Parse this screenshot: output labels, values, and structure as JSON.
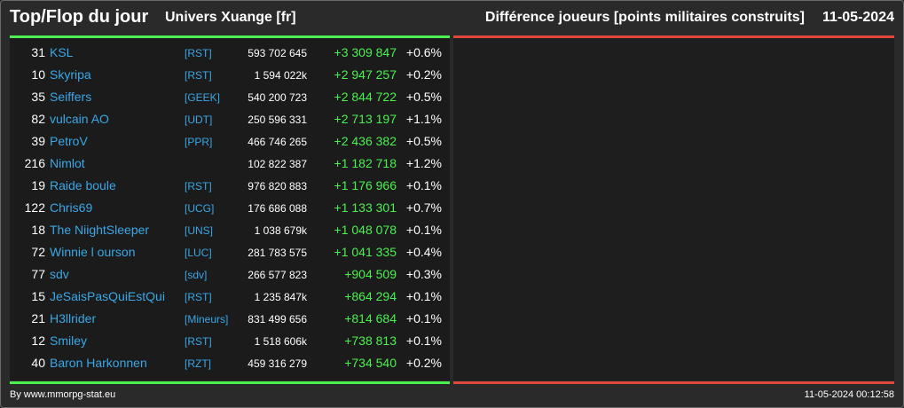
{
  "header": {
    "title": "Top/Flop du jour",
    "universe": "Univers Xuange [fr]",
    "metric": "Différence joueurs [points militaires construits]",
    "date": "11-05-2024"
  },
  "colors": {
    "background": "#2a2a2a",
    "panel": "#1b1b1b",
    "top_line": "#4cf050",
    "flop_line": "#e0463c",
    "name_link": "#3aa7e6",
    "positive_diff": "#4cf050"
  },
  "top_rows": [
    {
      "rank": "31",
      "name": "KSL",
      "alliance": "[RST]",
      "total": "593 702 645",
      "diff": "+3 309 847",
      "pct": "+0.6%"
    },
    {
      "rank": "10",
      "name": "Skyripa",
      "alliance": "[RST]",
      "total": "1 594 022k",
      "diff": "+2 947 257",
      "pct": "+0.2%"
    },
    {
      "rank": "35",
      "name": "Seiffers",
      "alliance": "[GEEK]",
      "total": "540 200 723",
      "diff": "+2 844 722",
      "pct": "+0.5%"
    },
    {
      "rank": "82",
      "name": "vulcain AO",
      "alliance": "[UDT]",
      "total": "250 596 331",
      "diff": "+2 713 197",
      "pct": "+1.1%"
    },
    {
      "rank": "39",
      "name": "PetroV",
      "alliance": "[PPR]",
      "total": "466 746 265",
      "diff": "+2 436 382",
      "pct": "+0.5%"
    },
    {
      "rank": "216",
      "name": "Nimlot",
      "alliance": "",
      "total": "102 822 387",
      "diff": "+1 182 718",
      "pct": "+1.2%"
    },
    {
      "rank": "19",
      "name": "Raide boule",
      "alliance": "[RST]",
      "total": "976 820 883",
      "diff": "+1 176 966",
      "pct": "+0.1%"
    },
    {
      "rank": "122",
      "name": "Chris69",
      "alliance": "[UCG]",
      "total": "176 686 088",
      "diff": "+1 133 301",
      "pct": "+0.7%"
    },
    {
      "rank": "18",
      "name": "The NiightSleeper",
      "alliance": "[UNS]",
      "total": "1 038 679k",
      "diff": "+1 048 078",
      "pct": "+0.1%"
    },
    {
      "rank": "72",
      "name": "Winnie l ourson",
      "alliance": "[LUC]",
      "total": "281 783 575",
      "diff": "+1 041 335",
      "pct": "+0.4%"
    },
    {
      "rank": "77",
      "name": "sdv",
      "alliance": "[sdv]",
      "total": "266 577 823",
      "diff": "+904 509",
      "pct": "+0.3%"
    },
    {
      "rank": "15",
      "name": "JeSaisPasQuiEstQui",
      "alliance": "[RST]",
      "total": "1 235 847k",
      "diff": "+864 294",
      "pct": "+0.1%"
    },
    {
      "rank": "21",
      "name": "H3llrider",
      "alliance": "[Mineurs]",
      "total": "831 499 656",
      "diff": "+814 684",
      "pct": "+0.1%"
    },
    {
      "rank": "12",
      "name": "Smiley",
      "alliance": "[RST]",
      "total": "1 518 606k",
      "diff": "+738 813",
      "pct": "+0.1%"
    },
    {
      "rank": "40",
      "name": "Baron Harkonnen",
      "alliance": "[RZT]",
      "total": "459 316 279",
      "diff": "+734 540",
      "pct": "+0.2%"
    }
  ],
  "footer": {
    "credit": "By www.mmorpg-stat.eu",
    "timestamp": "11-05-2024 00:12:58"
  }
}
